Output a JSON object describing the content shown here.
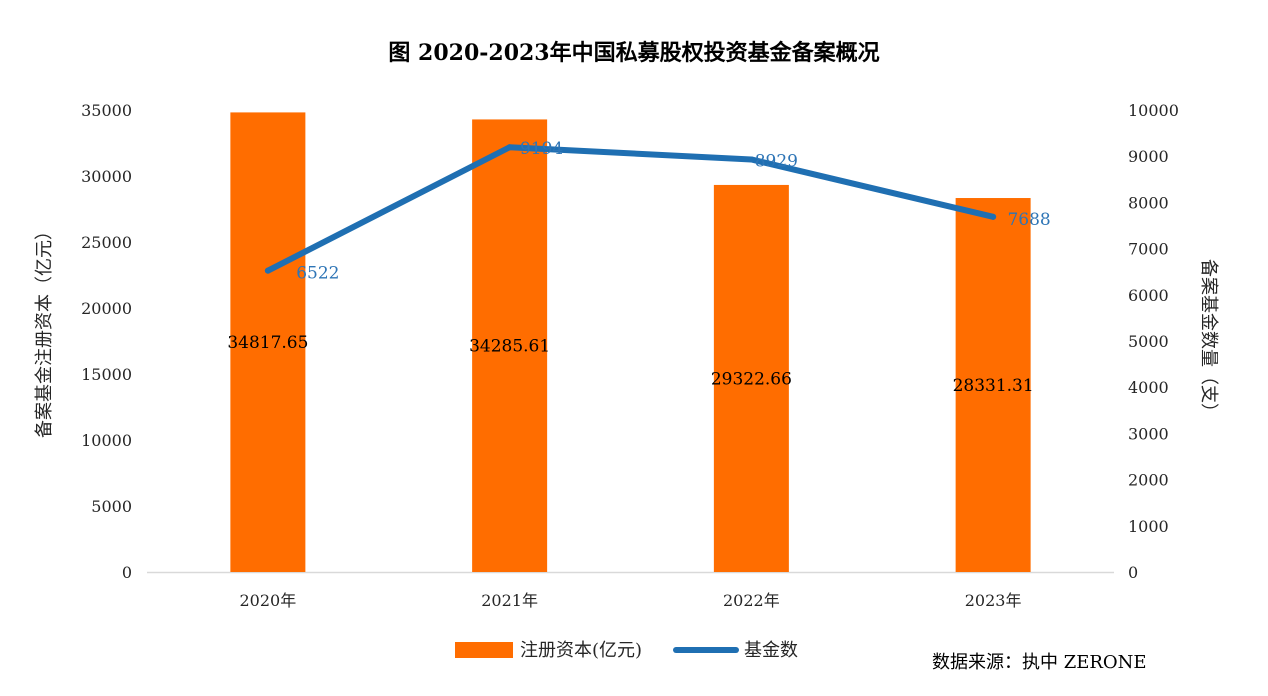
{
  "chart_data": {
    "type": "bar",
    "title": "图 2020-2023年中国私募股权投资基金备案概况",
    "categories": [
      "2020年",
      "2021年",
      "2022年",
      "2023年"
    ],
    "series": [
      {
        "name": "注册资本(亿元)",
        "type": "bar",
        "axis": "left",
        "color": "#FF6D00",
        "values": [
          34817.65,
          34285.61,
          29322.66,
          28331.31
        ],
        "labels": [
          "34817.65",
          "34285.61",
          "29322.66",
          "28331.31"
        ]
      },
      {
        "name": "基金数",
        "type": "line",
        "axis": "right",
        "color": "#1F6FB2",
        "label_color": "#2E75B6",
        "values": [
          6522,
          9194,
          8929,
          7688
        ],
        "labels": [
          "6522",
          "9194",
          "8929",
          "7688"
        ]
      }
    ],
    "ylabel_left": "备案基金注册资本（亿元）",
    "ylabel_right": "备案基金数量（支）",
    "ylim_left": [
      0,
      35000
    ],
    "yticks_left": [
      0,
      5000,
      10000,
      15000,
      20000,
      25000,
      30000,
      35000
    ],
    "ylim_right": [
      0,
      10000
    ],
    "yticks_right": [
      0,
      1000,
      2000,
      3000,
      4000,
      5000,
      6000,
      7000,
      8000,
      9000,
      10000
    ],
    "grid": false,
    "legend_position": "bottom-center",
    "source_note": "数据来源：执中 ZERONE"
  }
}
